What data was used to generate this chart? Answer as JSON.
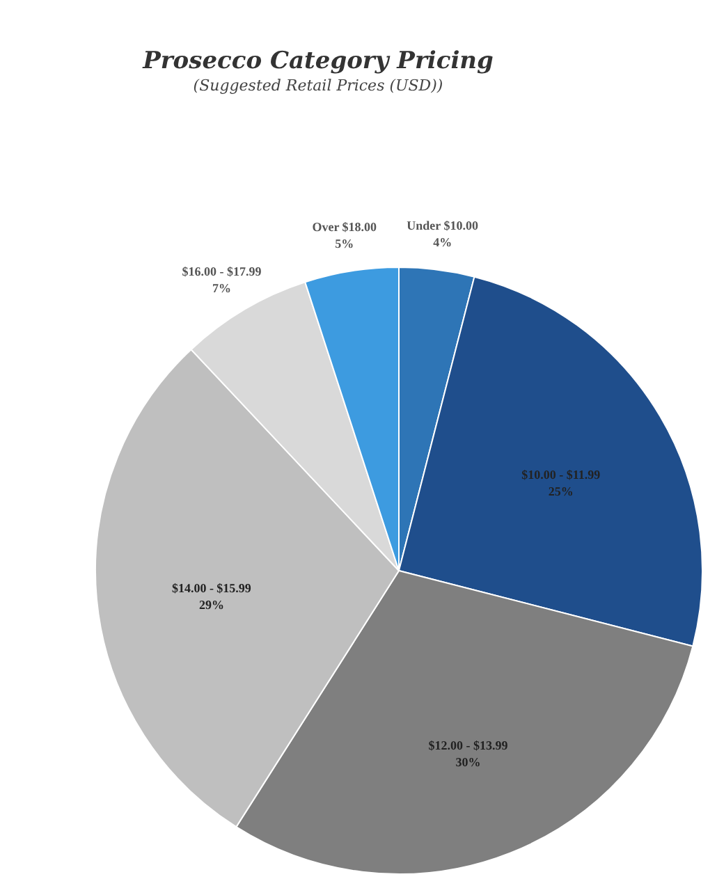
{
  "chart_data": {
    "type": "pie",
    "title": "Prosecco Category Pricing",
    "subtitle": "(Suggested Retail Prices (USD))",
    "categories": [
      "Under $10.00",
      "$10.00 - $11.99",
      "$12.00 - $13.99",
      "$14.00 - $15.99",
      "$16.00 - $17.99",
      "Over $18.00"
    ],
    "values": [
      4,
      25,
      30,
      29,
      7,
      5
    ],
    "value_labels": [
      "4%",
      "25%",
      "30%",
      "29%",
      "7%",
      "5%"
    ],
    "colors": [
      "#2e75b6",
      "#1f4e8c",
      "#7f7f7f",
      "#bfbfbf",
      "#d9d9d9",
      "#3d9be0"
    ]
  }
}
